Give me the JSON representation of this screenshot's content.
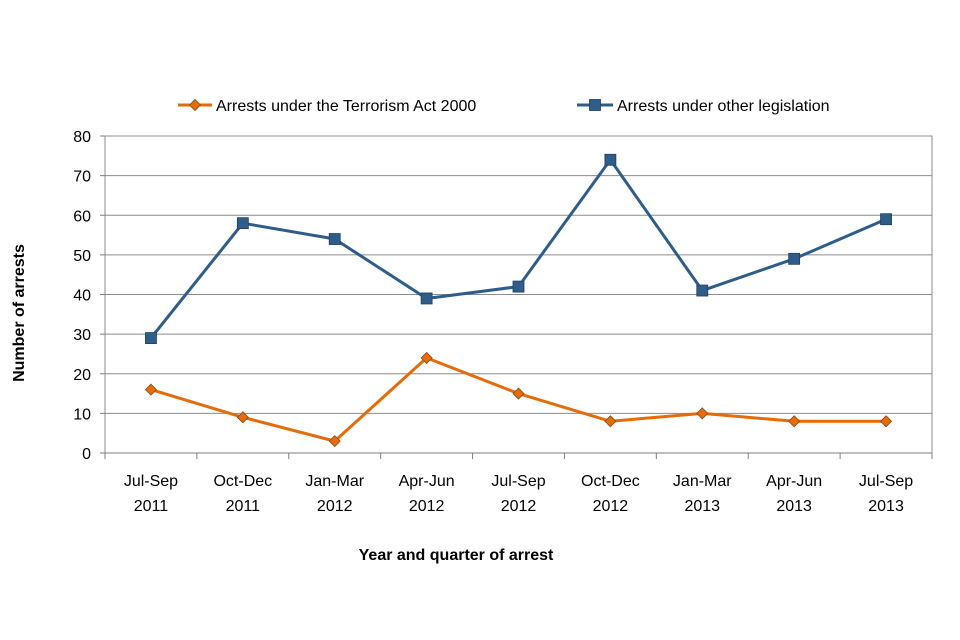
{
  "chart_data": {
    "type": "line",
    "title": "",
    "xlabel": "Year and quarter of arrest",
    "ylabel": "Number of arrests",
    "ylim": [
      0,
      80
    ],
    "yticks": [
      0,
      10,
      20,
      30,
      40,
      50,
      60,
      70,
      80
    ],
    "grid": true,
    "legend_position": "top",
    "categories": [
      {
        "quarter": "Jul-Sep",
        "year": "2011"
      },
      {
        "quarter": "Oct-Dec",
        "year": "2011"
      },
      {
        "quarter": "Jan-Mar",
        "year": "2012"
      },
      {
        "quarter": "Apr-Jun",
        "year": "2012"
      },
      {
        "quarter": "Jul-Sep",
        "year": "2012"
      },
      {
        "quarter": "Oct-Dec",
        "year": "2012"
      },
      {
        "quarter": "Jan-Mar",
        "year": "2013"
      },
      {
        "quarter": "Apr-Jun",
        "year": "2013"
      },
      {
        "quarter": "Jul-Sep",
        "year": "2013"
      }
    ],
    "series": [
      {
        "name": "Arrests under the Terrorism Act 2000",
        "color": "#E46C0A",
        "marker": "diamond",
        "values": [
          16,
          9,
          3,
          24,
          15,
          8,
          10,
          8,
          8
        ]
      },
      {
        "name": "Arrests under other legislation",
        "color": "#2F5D8A",
        "marker": "square",
        "values": [
          29,
          58,
          54,
          39,
          42,
          74,
          41,
          49,
          59
        ]
      }
    ]
  }
}
